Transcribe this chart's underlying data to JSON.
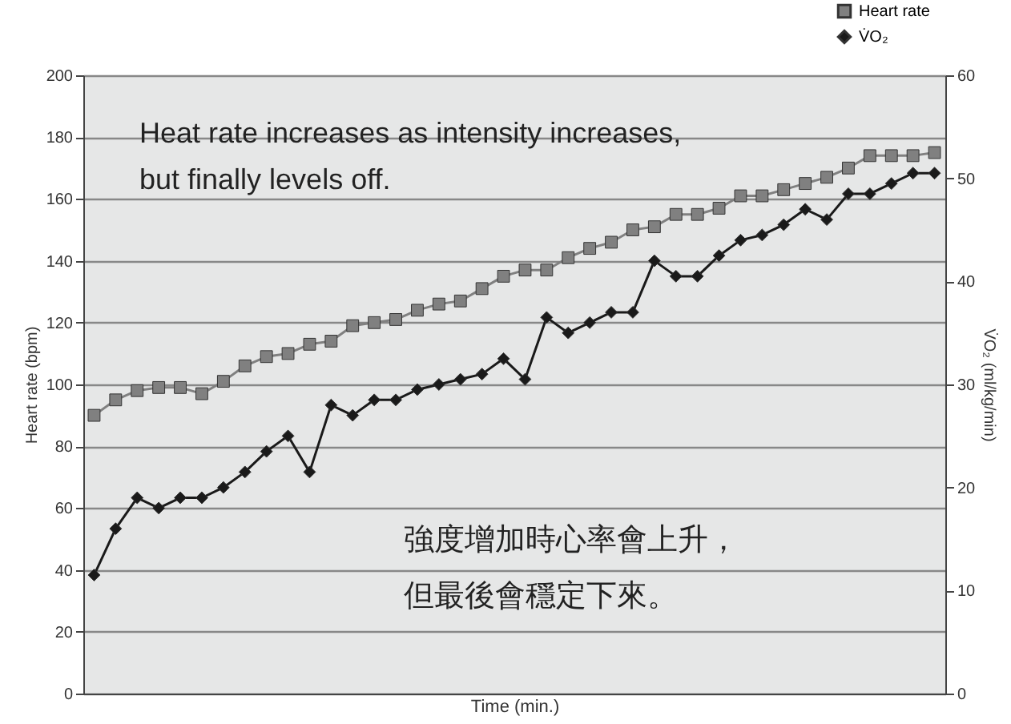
{
  "chart_data": {
    "type": "line",
    "xlabel": "Time (min.)",
    "ylabel": "Heart rate (bpm)",
    "y2label": "V̇O₂ (ml/kg/min)",
    "categories": [
      null,
      null,
      null,
      null,
      null,
      null,
      null,
      null,
      null,
      null,
      null,
      null,
      null,
      null,
      null,
      null,
      null,
      null,
      null,
      null,
      null,
      null,
      null,
      null,
      null,
      null,
      null,
      null,
      null,
      null,
      null,
      null,
      null,
      null,
      null,
      null,
      null,
      null,
      null,
      null
    ],
    "series": [
      {
        "name": "Heart rate",
        "color": "#808080",
        "marker": "square",
        "values": [
          90,
          95,
          98,
          99,
          99,
          97,
          101,
          106,
          109,
          110,
          113,
          114,
          119,
          120,
          121,
          124,
          126,
          127,
          131,
          135,
          137,
          137,
          141,
          144,
          146,
          150,
          151,
          155,
          155,
          157,
          161,
          161,
          163,
          165,
          167,
          170,
          174,
          174,
          174,
          175
        ]
      },
      {
        "name": "V̇O₂",
        "color": "#1a1a1a",
        "marker": "diamond",
        "axis": "y2",
        "values": [
          11.5,
          16,
          19,
          18,
          19,
          19,
          20,
          21.5,
          23.5,
          25,
          21.5,
          28,
          27,
          28.5,
          28.5,
          29.5,
          30,
          30.5,
          31,
          32.5,
          30.5,
          36.5,
          35,
          36,
          37,
          37,
          42,
          40.5,
          40.5,
          42.5,
          44,
          44.5,
          45.5,
          47,
          46,
          48.5,
          48.5,
          49.5,
          50.5,
          50.5
        ]
      }
    ],
    "ylim": [
      0,
      200
    ],
    "yticks": [
      0,
      20,
      40,
      60,
      80,
      100,
      120,
      140,
      160,
      180,
      200
    ],
    "y2lim": [
      0,
      60
    ],
    "y2ticks": [
      0,
      10,
      20,
      30,
      40,
      50,
      60
    ],
    "grid": "y",
    "legend": "top right",
    "tick_labels": "y",
    "line_style": "solid",
    "annotations": [
      "Heat rate increases as intensity increases,\nbut finally levels off.",
      "強度增加時心率會上升，",
      "但最後會穩定下來。"
    ]
  }
}
